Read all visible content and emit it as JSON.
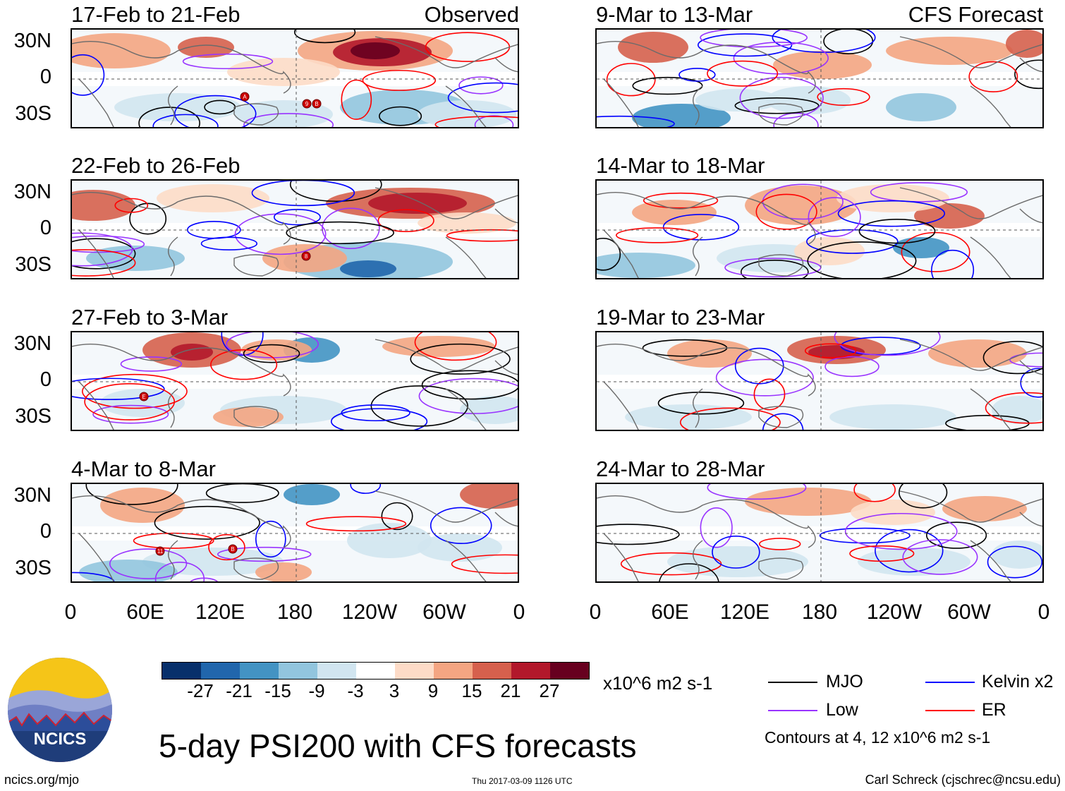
{
  "panels": [
    {
      "id": "p1",
      "title": "17-Feb to 21-Feb",
      "label": "Observed"
    },
    {
      "id": "p2",
      "title": "22-Feb to 26-Feb",
      "label": ""
    },
    {
      "id": "p3",
      "title": "27-Feb to 3-Mar",
      "label": ""
    },
    {
      "id": "p4",
      "title": "4-Mar to 8-Mar",
      "label": ""
    },
    {
      "id": "p5",
      "title": "9-Mar to 13-Mar",
      "label": "CFS Forecast"
    },
    {
      "id": "p6",
      "title": "14-Mar to 18-Mar",
      "label": ""
    },
    {
      "id": "p7",
      "title": "19-Mar to 23-Mar",
      "label": ""
    },
    {
      "id": "p8",
      "title": "24-Mar to 28-Mar",
      "label": ""
    }
  ],
  "axes": {
    "y_ticks": [
      "30N",
      "0",
      "30S"
    ],
    "x_ticks": [
      "0",
      "60E",
      "120E",
      "180",
      "120W",
      "60W",
      "0"
    ]
  },
  "colorbar": {
    "colors": [
      "#08306b",
      "#2166ac",
      "#4393c3",
      "#92c5de",
      "#d1e5f0",
      "#ffffff",
      "#fddbc7",
      "#f4a582",
      "#d6604d",
      "#b2182b",
      "#67001f"
    ],
    "ticks": [
      "-27",
      "-21",
      "-15",
      "-9",
      "-3",
      "3",
      "9",
      "15",
      "21",
      "27"
    ],
    "units": "x10^6 m2 s-1"
  },
  "legend": {
    "items": [
      {
        "label": "MJO",
        "color": "#000000"
      },
      {
        "label": "Kelvin x2",
        "color": "#0000ff"
      },
      {
        "label": "Low",
        "color": "#9933ff"
      },
      {
        "label": "ER",
        "color": "#ff0000"
      }
    ],
    "note": "Contours at 4, 12 x10^6 m2 s-1"
  },
  "logo": {
    "text": "NCICS"
  },
  "main_title": "5-day PSI200 with CFS forecasts",
  "footer": {
    "url": "ncics.org/mjo",
    "timestamp": "Thu 2017-03-09 1126 UTC",
    "author": "Carl Schreck (cjschrec@ncsu.edu)"
  },
  "storm_markers": {
    "p1": [
      "A",
      "9",
      "B"
    ],
    "p2": [
      "8"
    ],
    "p3": [
      "E"
    ],
    "p4": [
      "11",
      "B"
    ]
  }
}
